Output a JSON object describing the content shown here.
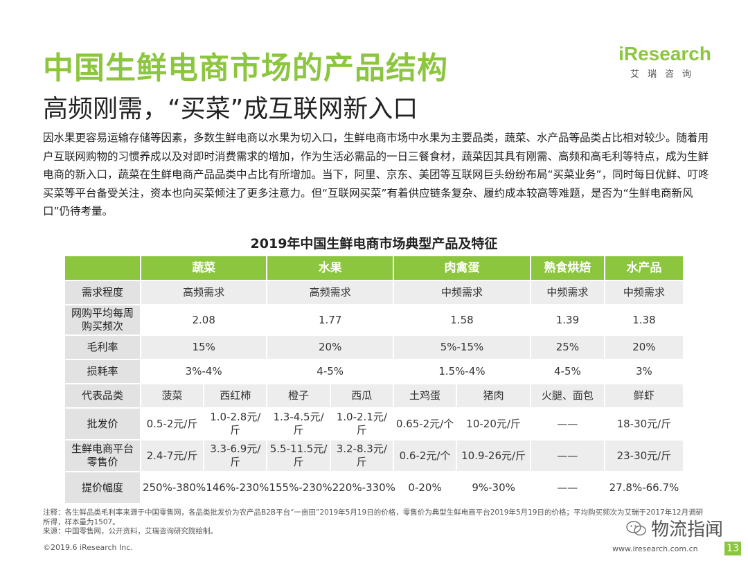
{
  "header": {
    "title": "中国生鲜电商市场的产品结构",
    "subtitle": "高频刚需，“买菜”成互联网新入口"
  },
  "logo": {
    "main": "iResearch",
    "sub": "艾瑞咨询"
  },
  "body_text": "因水果更容易运输存储等因素，多数生鲜电商以水果为切入口，生鲜电商市场中水果为主要品类，蔬菜、水产品等品类占比相对较少。随着用户互联网购物的习惯养成以及对即时消费需求的增加，作为生活必需品的一日三餐食材，蔬菜因其具有刚需、高频和高毛利等特点，成为生鲜电商的新入口，蔬菜在生鲜电商产品品类中占比有所增加。当下，阿里、京东、美团等互联网巨头纷纷布局“买菜业务”，同时每日优鲜、叮咚买菜等平台备受关注，资本也向买菜倾注了更多注意力。但“互联网买菜”有着供应链条复杂、履约成本较高等难题，是否为“生鲜电商新风口”仍待考量。",
  "table": {
    "title": "2019年中国生鲜电商市场典型产品及特征",
    "headers": [
      "蔬菜",
      "水果",
      "肉禽蛋",
      "熟食烘焙",
      "水产品"
    ],
    "rows": [
      {
        "label": "需求程度",
        "values": [
          "高频需求",
          "高频需求",
          "中频需求",
          "中频需求",
          "中频需求"
        ]
      },
      {
        "label": "网购平均每周购买频次",
        "values": [
          "2.08",
          "1.77",
          "1.58",
          "1.39",
          "1.38"
        ]
      },
      {
        "label": "毛利率",
        "values": [
          "15%",
          "20%",
          "5%-15%",
          "25%",
          "20%"
        ]
      },
      {
        "label": "损耗率",
        "values": [
          "3%-4%",
          "4-5%",
          "1.5%-4%",
          "4-5%",
          "3%"
        ]
      },
      {
        "label": "代表品类",
        "values": [
          "菠菜",
          "西红柿",
          "橙子",
          "西瓜",
          "土鸡蛋",
          "猪肉",
          "火腿、面包",
          "鲜虾"
        ]
      },
      {
        "label": "批发价",
        "values": [
          "0.5-2元/斤",
          "1.0-2.8元/斤",
          "1.3-4.5元/斤",
          "1.0-2.1元/斤",
          "0.65-2元/个",
          "10-20元/斤",
          "——",
          "18-30元/斤"
        ]
      },
      {
        "label": "生鲜电商平台零售价",
        "values": [
          "2.4-7元/斤",
          "3.3-6.9元/斤",
          "5.5-11.5元/斤",
          "3.2-8.3元/斤",
          "0.6-2元/个",
          "10.9-26元/斤",
          "——",
          "23-30元/斤"
        ]
      },
      {
        "label": "提价幅度",
        "values": [
          "250%-380%",
          "146%-230%",
          "155%-230%",
          "220%-330%",
          "0-20%",
          "9%-30%",
          "——",
          "27.8%-66.7%"
        ]
      }
    ]
  },
  "notes": {
    "line1": "注释：各生鲜品类毛利率来源于中国零售网，各品类批发价为农产品B2B平台“一亩田”2019年5月19日的价格，零售价为典型生鲜电商平台2019年5月19日的价格；平均购买频次为艾瑞于2017年12月调研所得，样本量为1507。",
    "line2": "来源：中国零售网，公开资料，艾瑞咨询研究院绘制。"
  },
  "footer": {
    "copyright": "©2019.6 iResearch Inc.",
    "website": "www.iresearch.com.cn",
    "page": "13"
  },
  "watermark": "物流指闻",
  "colors": {
    "accent": "#8cc63f",
    "header_bg": "#8cc63f",
    "label_bg": "#e2e2e2",
    "stripe": "#ededed"
  }
}
